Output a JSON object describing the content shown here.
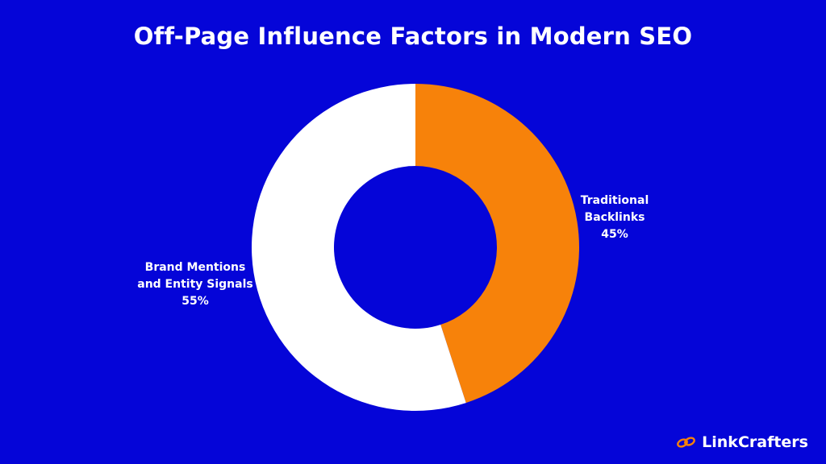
{
  "colors": {
    "background": "#0505d8",
    "brand_slice": "#ffffff",
    "backlinks_slice": "#f7820a",
    "logo_accent": "#f7820a"
  },
  "logo": {
    "icon": "link-chain-icon",
    "text": "LinkCrafters"
  },
  "chart_data": {
    "type": "pie",
    "donut": true,
    "title": "Off-Page Influence Factors in Modern SEO",
    "legend": "none",
    "slices": [
      {
        "label_lines": [
          "Traditional",
          "Backlinks"
        ],
        "value": 45,
        "value_label": "45%",
        "color": "#f7820a"
      },
      {
        "label_lines": [
          "Brand Mentions",
          "and Entity Signals"
        ],
        "value": 55,
        "value_label": "55%",
        "color": "#ffffff"
      }
    ]
  }
}
